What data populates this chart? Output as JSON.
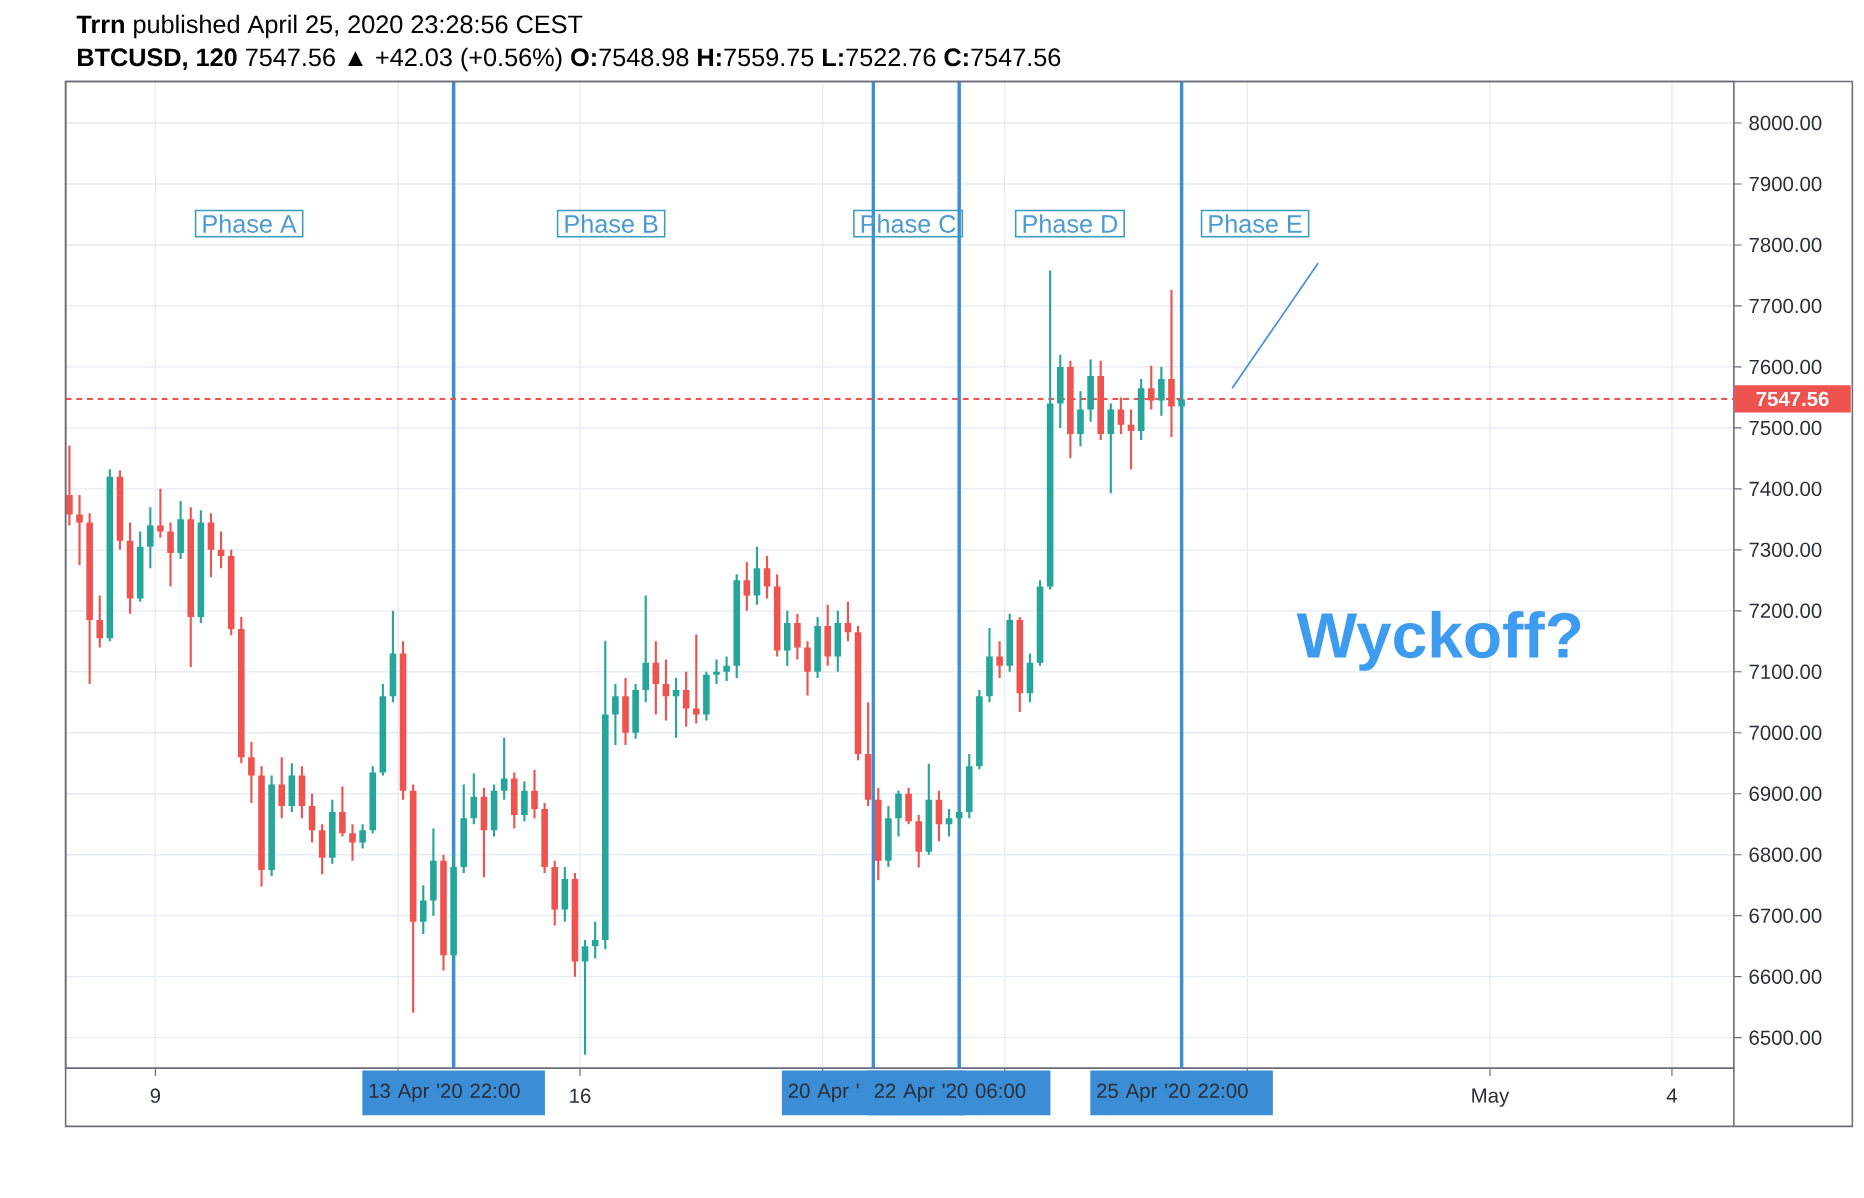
{
  "chart_data": {
    "type": "candlestick",
    "title": "**Trrn** published April 25, 2020 23:28:56 CEST",
    "subtitle": "**BTCUSD, 120** 7547.56 ▲ +42.03 (+0.56%) **O:**7548.98 **H:**7559.75 **L:**7522.76 **C:**7547.56",
    "x": [
      "2020-04-07T14:00",
      "2020-04-07T18:00",
      "2020-04-07T22:00",
      "2020-04-08T02:00",
      "2020-04-08T06:00",
      "2020-04-08T10:00",
      "2020-04-08T14:00",
      "2020-04-08T18:00",
      "2020-04-08T22:00",
      "2020-04-09T02:00",
      "2020-04-09T06:00",
      "2020-04-09T10:00",
      "2020-04-09T14:00",
      "2020-04-09T18:00",
      "2020-04-09T22:00",
      "2020-04-10T02:00",
      "2020-04-10T06:00",
      "2020-04-10T10:00",
      "2020-04-10T14:00",
      "2020-04-10T18:00",
      "2020-04-10T22:00",
      "2020-04-11T02:00",
      "2020-04-11T06:00",
      "2020-04-11T10:00",
      "2020-04-11T14:00",
      "2020-04-11T18:00",
      "2020-04-11T22:00",
      "2020-04-12T02:00",
      "2020-04-12T06:00",
      "2020-04-12T10:00",
      "2020-04-12T14:00",
      "2020-04-12T18:00",
      "2020-04-12T22:00",
      "2020-04-13T02:00",
      "2020-04-13T06:00",
      "2020-04-13T10:00",
      "2020-04-13T14:00",
      "2020-04-13T18:00",
      "2020-04-13T22:00",
      "2020-04-14T02:00",
      "2020-04-14T06:00",
      "2020-04-14T10:00",
      "2020-04-14T14:00",
      "2020-04-14T18:00",
      "2020-04-14T22:00",
      "2020-04-15T02:00",
      "2020-04-15T06:00",
      "2020-04-15T10:00",
      "2020-04-15T14:00",
      "2020-04-15T18:00",
      "2020-04-15T22:00",
      "2020-04-16T02:00",
      "2020-04-16T06:00",
      "2020-04-16T10:00",
      "2020-04-16T14:00",
      "2020-04-16T18:00",
      "2020-04-16T22:00",
      "2020-04-17T02:00",
      "2020-04-17T06:00",
      "2020-04-17T10:00",
      "2020-04-17T14:00",
      "2020-04-17T18:00",
      "2020-04-17T22:00",
      "2020-04-18T02:00",
      "2020-04-18T06:00",
      "2020-04-18T10:00",
      "2020-04-18T14:00",
      "2020-04-18T18:00",
      "2020-04-18T22:00",
      "2020-04-19T02:00",
      "2020-04-19T06:00",
      "2020-04-19T10:00",
      "2020-04-19T14:00",
      "2020-04-19T18:00",
      "2020-04-19T22:00",
      "2020-04-20T02:00",
      "2020-04-20T06:00",
      "2020-04-20T10:00",
      "2020-04-20T14:00",
      "2020-04-20T18:00",
      "2020-04-20T22:00",
      "2020-04-21T02:00",
      "2020-04-21T06:00",
      "2020-04-21T10:00",
      "2020-04-21T14:00",
      "2020-04-21T18:00",
      "2020-04-21T22:00",
      "2020-04-22T02:00",
      "2020-04-22T06:00",
      "2020-04-22T10:00",
      "2020-04-22T14:00",
      "2020-04-22T18:00",
      "2020-04-22T22:00",
      "2020-04-23T02:00",
      "2020-04-23T06:00",
      "2020-04-23T10:00",
      "2020-04-23T14:00",
      "2020-04-23T18:00",
      "2020-04-23T22:00",
      "2020-04-24T02:00",
      "2020-04-24T06:00",
      "2020-04-24T10:00",
      "2020-04-24T14:00",
      "2020-04-24T18:00",
      "2020-04-24T22:00",
      "2020-04-25T02:00",
      "2020-04-25T06:00",
      "2020-04-25T10:00",
      "2020-04-25T14:00",
      "2020-04-25T18:00",
      "2020-04-25T22:00"
    ],
    "ohlc": [
      [
        7390,
        7471,
        7340,
        7358
      ],
      [
        7358,
        7390,
        7275,
        7345
      ],
      [
        7345,
        7360,
        7080,
        7185
      ],
      [
        7185,
        7225,
        7140,
        7155
      ],
      [
        7155,
        7432,
        7150,
        7420
      ],
      [
        7420,
        7430,
        7300,
        7315
      ],
      [
        7315,
        7345,
        7195,
        7220
      ],
      [
        7220,
        7330,
        7215,
        7305
      ],
      [
        7305,
        7370,
        7270,
        7340
      ],
      [
        7340,
        7400,
        7320,
        7330
      ],
      [
        7330,
        7345,
        7240,
        7295
      ],
      [
        7295,
        7380,
        7285,
        7350
      ],
      [
        7350,
        7370,
        7108,
        7190
      ],
      [
        7190,
        7365,
        7180,
        7345
      ],
      [
        7345,
        7360,
        7255,
        7300
      ],
      [
        7300,
        7330,
        7270,
        7290
      ],
      [
        7290,
        7300,
        7160,
        7170
      ],
      [
        7170,
        7190,
        6950,
        6960
      ],
      [
        6960,
        6985,
        6885,
        6930
      ],
      [
        6930,
        6945,
        6748,
        6775
      ],
      [
        6775,
        6930,
        6765,
        6915
      ],
      [
        6915,
        6960,
        6860,
        6880
      ],
      [
        6880,
        6950,
        6870,
        6930
      ],
      [
        6930,
        6945,
        6860,
        6880
      ],
      [
        6880,
        6900,
        6820,
        6840
      ],
      [
        6840,
        6850,
        6768,
        6795
      ],
      [
        6795,
        6890,
        6785,
        6870
      ],
      [
        6870,
        6912,
        6830,
        6835
      ],
      [
        6835,
        6850,
        6790,
        6820
      ],
      [
        6820,
        6850,
        6810,
        6840
      ],
      [
        6840,
        6945,
        6835,
        6935
      ],
      [
        6935,
        7080,
        6930,
        7060
      ],
      [
        7060,
        7200,
        7050,
        7130
      ],
      [
        7130,
        7150,
        6890,
        6905
      ],
      [
        6905,
        6915,
        6541,
        6690
      ],
      [
        6690,
        6750,
        6670,
        6725
      ],
      [
        6725,
        6843,
        6700,
        6790
      ],
      [
        6790,
        6800,
        6610,
        6635
      ],
      [
        6635,
        6800,
        6625,
        6780
      ],
      [
        6780,
        6915,
        6770,
        6860
      ],
      [
        6860,
        6933,
        6850,
        6895
      ],
      [
        6895,
        6910,
        6763,
        6840
      ],
      [
        6840,
        6915,
        6830,
        6905
      ],
      [
        6905,
        6992,
        6890,
        6925
      ],
      [
        6925,
        6935,
        6843,
        6865
      ],
      [
        6865,
        6920,
        6855,
        6905
      ],
      [
        6905,
        6939,
        6860,
        6875
      ],
      [
        6875,
        6885,
        6770,
        6780
      ],
      [
        6780,
        6790,
        6684,
        6710
      ],
      [
        6710,
        6780,
        6690,
        6760
      ],
      [
        6760,
        6770,
        6600,
        6625
      ],
      [
        6625,
        6660,
        6472,
        6650
      ],
      [
        6650,
        6690,
        6630,
        6660
      ],
      [
        6660,
        7151,
        6645,
        7030
      ],
      [
        7030,
        7080,
        6980,
        7060
      ],
      [
        7060,
        7090,
        6980,
        7000
      ],
      [
        7000,
        7080,
        6990,
        7070
      ],
      [
        7070,
        7225,
        7050,
        7115
      ],
      [
        7115,
        7150,
        7030,
        7080
      ],
      [
        7080,
        7120,
        7020,
        7060
      ],
      [
        7060,
        7090,
        6992,
        7070
      ],
      [
        7070,
        7100,
        7010,
        7040
      ],
      [
        7040,
        7161,
        7015,
        7030
      ],
      [
        7030,
        7100,
        7020,
        7095
      ],
      [
        7095,
        7120,
        7080,
        7100
      ],
      [
        7100,
        7125,
        7085,
        7110
      ],
      [
        7110,
        7260,
        7090,
        7250
      ],
      [
        7250,
        7280,
        7200,
        7225
      ],
      [
        7225,
        7305,
        7210,
        7270
      ],
      [
        7270,
        7290,
        7220,
        7240
      ],
      [
        7240,
        7260,
        7125,
        7135
      ],
      [
        7135,
        7200,
        7110,
        7180
      ],
      [
        7180,
        7195,
        7120,
        7140
      ],
      [
        7140,
        7150,
        7061,
        7100
      ],
      [
        7100,
        7190,
        7090,
        7175
      ],
      [
        7175,
        7210,
        7110,
        7125
      ],
      [
        7125,
        7200,
        7100,
        7180
      ],
      [
        7180,
        7215,
        7150,
        7165
      ],
      [
        7165,
        7175,
        6955,
        6965
      ],
      [
        6965,
        7050,
        6880,
        6890
      ],
      [
        6890,
        6910,
        6758,
        6790
      ],
      [
        6790,
        6880,
        6780,
        6860
      ],
      [
        6860,
        6905,
        6830,
        6900
      ],
      [
        6900,
        6910,
        6850,
        6855
      ],
      [
        6855,
        6865,
        6779,
        6805
      ],
      [
        6805,
        6949,
        6800,
        6890
      ],
      [
        6890,
        6905,
        6822,
        6850
      ],
      [
        6850,
        6875,
        6830,
        6860
      ],
      [
        6860,
        6875,
        6840,
        6870
      ],
      [
        6870,
        6965,
        6860,
        6945
      ],
      [
        6945,
        7070,
        6940,
        7060
      ],
      [
        7060,
        7172,
        7050,
        7125
      ],
      [
        7125,
        7150,
        7090,
        7110
      ],
      [
        7110,
        7195,
        7100,
        7185
      ],
      [
        7185,
        7190,
        7034,
        7065
      ],
      [
        7065,
        7130,
        7050,
        7115
      ],
      [
        7115,
        7250,
        7110,
        7240
      ],
      [
        7240,
        7758,
        7235,
        7540
      ],
      [
        7540,
        7620,
        7500,
        7600
      ],
      [
        7600,
        7610,
        7450,
        7490
      ],
      [
        7490,
        7560,
        7470,
        7530
      ],
      [
        7530,
        7612,
        7510,
        7585
      ],
      [
        7585,
        7610,
        7480,
        7490
      ],
      [
        7490,
        7540,
        7393,
        7530
      ],
      [
        7530,
        7550,
        7490,
        7505
      ],
      [
        7505,
        7530,
        7432,
        7495
      ],
      [
        7495,
        7580,
        7480,
        7565
      ],
      [
        7565,
        7602,
        7530,
        7545
      ],
      [
        7545,
        7600,
        7520,
        7580
      ],
      [
        7580,
        7726,
        7485,
        7535
      ],
      [
        7535,
        7565,
        7505,
        7547
      ]
    ],
    "colors": [
      "#ef5350",
      "#ef5350",
      "#ef5350",
      "#ef5350",
      "#26a69a",
      "#ef5350",
      "#ef5350",
      "#26a69a",
      "#26a69a",
      "#ef5350",
      "#ef5350",
      "#26a69a",
      "#ef5350",
      "#26a69a",
      "#ef5350",
      "#ef5350",
      "#ef5350",
      "#ef5350",
      "#ef5350",
      "#ef5350",
      "#26a69a",
      "#ef5350",
      "#26a69a",
      "#ef5350",
      "#ef5350",
      "#ef5350",
      "#26a69a",
      "#ef5350",
      "#ef5350",
      "#26a69a",
      "#26a69a",
      "#26a69a",
      "#26a69a",
      "#ef5350",
      "#ef5350",
      "#26a69a",
      "#26a69a",
      "#ef5350",
      "#26a69a",
      "#26a69a",
      "#26a69a",
      "#ef5350",
      "#26a69a",
      "#26a69a",
      "#ef5350",
      "#26a69a",
      "#ef5350",
      "#ef5350",
      "#ef5350",
      "#26a69a",
      "#ef5350",
      "#26a69a",
      "#26a69a",
      "#26a69a",
      "#26a69a",
      "#ef5350",
      "#26a69a",
      "#26a69a",
      "#ef5350",
      "#ef5350",
      "#26a69a",
      "#ef5350",
      "#ef5350",
      "#26a69a",
      "#26a69a",
      "#26a69a",
      "#26a69a",
      "#ef5350",
      "#26a69a",
      "#ef5350",
      "#ef5350",
      "#26a69a",
      "#ef5350",
      "#ef5350",
      "#26a69a",
      "#ef5350",
      "#26a69a",
      "#ef5350",
      "#ef5350",
      "#ef5350",
      "#ef5350",
      "#26a69a",
      "#26a69a",
      "#ef5350",
      "#ef5350",
      "#26a69a",
      "#ef5350",
      "#26a69a",
      "#26a69a",
      "#26a69a",
      "#26a69a",
      "#26a69a",
      "#ef5350",
      "#26a69a",
      "#ef5350",
      "#26a69a",
      "#26a69a",
      "#26a69a",
      "#26a69a",
      "#ef5350",
      "#26a69a",
      "#26a69a",
      "#ef5350",
      "#26a69a",
      "#ef5350",
      "#ef5350",
      "#26a69a",
      "#ef5350",
      "#26a69a",
      "#ef5350",
      "#26a69a"
    ],
    "series": [
      {
        "type": "line",
        "color": "#4a90d9",
        "x": [
          "2020-04-26T18:00",
          "2020-04-28T04:00"
        ],
        "values": [
          7565,
          7770
        ]
      }
    ],
    "xlim": [
      "2020-04-07T12:30",
      "2020-05-05T00:30"
    ],
    "xticks": [
      {
        "value": "2020-04-09",
        "label": "9"
      },
      {
        "value": "2020-04-13",
        "label": null
      },
      {
        "value": "2020-04-16",
        "label": "16"
      },
      {
        "value": "2020-04-20",
        "label": null
      },
      {
        "value": "2020-04-23",
        "label": null
      },
      {
        "value": "2020-04-27",
        "label": null
      },
      {
        "value": "2020-05-01",
        "label": "May"
      },
      {
        "value": "2020-05-04",
        "label": "4"
      }
    ],
    "ylim": [
      6450,
      8068
    ],
    "yticks": [
      {
        "value": 6500,
        "label": "6500.00"
      },
      {
        "value": 6600,
        "label": "6600.00"
      },
      {
        "value": 6700,
        "label": "6700.00"
      },
      {
        "value": 6800,
        "label": "6800.00"
      },
      {
        "value": 6900,
        "label": "6900.00"
      },
      {
        "value": 7000,
        "label": "7000.00"
      },
      {
        "value": 7100,
        "label": "7100.00"
      },
      {
        "value": 7200,
        "label": "7200.00"
      },
      {
        "value": 7300,
        "label": "7300.00"
      },
      {
        "value": 7400,
        "label": "7400.00"
      },
      {
        "value": 7500,
        "label": "7500.00"
      },
      {
        "value": 7600,
        "label": "7600.00"
      },
      {
        "value": 7700,
        "label": "7700.00"
      },
      {
        "value": 7800,
        "label": "7800.00"
      },
      {
        "value": 7900,
        "label": "7900.00"
      },
      {
        "value": 8000,
        "label": "8000.00"
      }
    ],
    "grid": true,
    "ref_lines": [
      {
        "axis": "x",
        "value": "2020-04-13T22:00",
        "label": "13 Apr '20 22:00",
        "color": "#3b8ed6"
      },
      {
        "axis": "x",
        "value": "2020-04-20T20:00",
        "label": "20 Apr '",
        "color": "#3b8ed6"
      },
      {
        "axis": "x",
        "value": "2020-04-22T06:00",
        "label": "22 Apr '20 06:00",
        "color": "#3b8ed6"
      },
      {
        "axis": "x",
        "value": "2020-04-25T22:00",
        "label": "25 Apr '20 22:00",
        "color": "#3b8ed6"
      },
      {
        "axis": "y",
        "value": 7547.56,
        "label": "7547.56",
        "color": "#ef5350",
        "line_style": "dashed"
      }
    ],
    "annotations": [
      "Phase A",
      "Phase B",
      "Phase C",
      "Phase D",
      "Phase E",
      "Wyckoff?"
    ]
  }
}
